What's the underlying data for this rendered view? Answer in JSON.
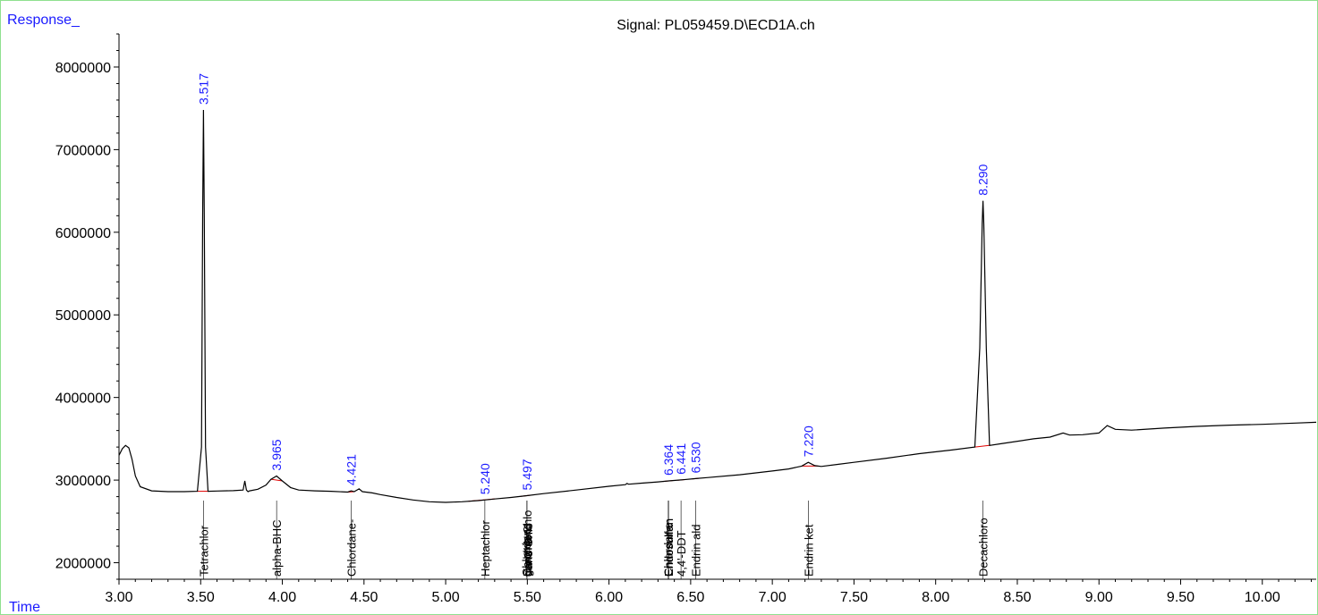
{
  "chart_data": {
    "type": "line",
    "title": "Signal: PL059459.D\\ECD1A.ch",
    "ylabel": "Response_",
    "xlabel": "Time",
    "xlim": [
      3.0,
      10.33
    ],
    "ylim": [
      1800000,
      8400000
    ],
    "x_ticks": [
      "3.00",
      "3.50",
      "4.00",
      "4.50",
      "5.00",
      "5.50",
      "6.00",
      "6.50",
      "7.00",
      "7.50",
      "8.00",
      "8.50",
      "9.00",
      "9.50",
      "10.00"
    ],
    "y_ticks": [
      "2000000",
      "3000000",
      "4000000",
      "5000000",
      "6000000",
      "7000000",
      "8000000"
    ],
    "colors": {
      "trace": "#000000",
      "peak_label": "#1a1aff",
      "baseline": "#e00000",
      "axis_title": "#1a1aff",
      "frame": "#8fe08f"
    },
    "series": [
      {
        "values": [
          [
            3.0,
            3300000
          ],
          [
            3.02,
            3380000
          ],
          [
            3.04,
            3420000
          ],
          [
            3.06,
            3390000
          ],
          [
            3.08,
            3250000
          ],
          [
            3.1,
            3050000
          ],
          [
            3.13,
            2920000
          ],
          [
            3.2,
            2870000
          ],
          [
            3.3,
            2860000
          ],
          [
            3.4,
            2860000
          ],
          [
            3.48,
            2865000
          ],
          [
            3.505,
            3400000
          ],
          [
            3.512,
            6200000
          ],
          [
            3.517,
            7480000
          ],
          [
            3.522,
            6200000
          ],
          [
            3.53,
            3400000
          ],
          [
            3.545,
            2865000
          ],
          [
            3.6,
            2868000
          ],
          [
            3.7,
            2872000
          ],
          [
            3.76,
            2880000
          ],
          [
            3.77,
            2990000
          ],
          [
            3.78,
            2880000
          ],
          [
            3.79,
            2860000
          ],
          [
            3.8,
            2870000
          ],
          [
            3.85,
            2890000
          ],
          [
            3.9,
            2940000
          ],
          [
            3.93,
            3010000
          ],
          [
            3.965,
            3050000
          ],
          [
            4.0,
            2990000
          ],
          [
            4.05,
            2910000
          ],
          [
            4.1,
            2880000
          ],
          [
            4.2,
            2870000
          ],
          [
            4.3,
            2865000
          ],
          [
            4.4,
            2855000
          ],
          [
            4.421,
            2870000
          ],
          [
            4.44,
            2860000
          ],
          [
            4.47,
            2895000
          ],
          [
            4.49,
            2860000
          ],
          [
            4.55,
            2845000
          ],
          [
            4.6,
            2825000
          ],
          [
            4.7,
            2790000
          ],
          [
            4.8,
            2760000
          ],
          [
            4.9,
            2738000
          ],
          [
            5.0,
            2730000
          ],
          [
            5.1,
            2738000
          ],
          [
            5.2,
            2752000
          ],
          [
            5.24,
            2760000
          ],
          [
            5.3,
            2772000
          ],
          [
            5.4,
            2790000
          ],
          [
            5.497,
            2812000
          ],
          [
            5.6,
            2836000
          ],
          [
            5.8,
            2880000
          ],
          [
            6.0,
            2925000
          ],
          [
            6.1,
            2945000
          ],
          [
            6.11,
            2960000
          ],
          [
            6.12,
            2950000
          ],
          [
            6.2,
            2963000
          ],
          [
            6.3,
            2978000
          ],
          [
            6.364,
            2990000
          ],
          [
            6.441,
            3002000
          ],
          [
            6.53,
            3018000
          ],
          [
            6.6,
            3030000
          ],
          [
            6.8,
            3065000
          ],
          [
            7.0,
            3110000
          ],
          [
            7.1,
            3135000
          ],
          [
            7.18,
            3170000
          ],
          [
            7.22,
            3215000
          ],
          [
            7.26,
            3175000
          ],
          [
            7.3,
            3165000
          ],
          [
            7.4,
            3190000
          ],
          [
            7.5,
            3215000
          ],
          [
            7.7,
            3265000
          ],
          [
            7.9,
            3320000
          ],
          [
            8.1,
            3365000
          ],
          [
            8.24,
            3400000
          ],
          [
            8.27,
            4600000
          ],
          [
            8.285,
            6100000
          ],
          [
            8.29,
            6380000
          ],
          [
            8.295,
            6100000
          ],
          [
            8.31,
            4600000
          ],
          [
            8.33,
            3420000
          ],
          [
            8.4,
            3440000
          ],
          [
            8.6,
            3500000
          ],
          [
            8.7,
            3520000
          ],
          [
            8.78,
            3570000
          ],
          [
            8.82,
            3545000
          ],
          [
            8.9,
            3550000
          ],
          [
            9.0,
            3570000
          ],
          [
            9.05,
            3660000
          ],
          [
            9.1,
            3615000
          ],
          [
            9.2,
            3605000
          ],
          [
            9.4,
            3630000
          ],
          [
            9.6,
            3650000
          ],
          [
            9.8,
            3665000
          ],
          [
            10.0,
            3675000
          ],
          [
            10.2,
            3690000
          ],
          [
            10.33,
            3700000
          ]
        ]
      }
    ],
    "peaks": [
      {
        "rt": "3.517",
        "x": 3.517,
        "y": 7480000,
        "compound": "Tetrachlor",
        "baseline": [
          3.48,
          3.55
        ]
      },
      {
        "rt": "3.965",
        "x": 3.965,
        "y": 3050000,
        "compound": "alpha-BHC",
        "baseline": [
          3.93,
          4.0
        ]
      },
      {
        "rt": "4.421",
        "x": 4.421,
        "y": 2870000,
        "compound": "Chlordane-",
        "baseline": [
          4.4,
          4.44
        ]
      },
      {
        "rt": "5.240",
        "x": 5.24,
        "y": 2760000,
        "compound": "Heptachlor",
        "baseline": [
          5.14,
          5.3
        ]
      },
      {
        "rt": "5.497",
        "x": 5.497,
        "y": 2812000,
        "compound": "gamma-Chlo",
        "baseline": [
          5.46,
          5.52
        ]
      },
      {
        "rt": "6.364",
        "x": 6.364,
        "y": 2990000,
        "compound": "Endosulfan",
        "baseline": [
          6.33,
          6.39
        ]
      },
      {
        "rt": "6.441",
        "x": 6.441,
        "y": 3002000,
        "compound": "4,4'-DDT",
        "baseline": [
          6.42,
          6.46
        ]
      },
      {
        "rt": "6.530",
        "x": 6.53,
        "y": 3018000,
        "compound": "Endrin ald",
        "baseline": [
          6.51,
          6.55
        ]
      },
      {
        "rt": "7.220",
        "x": 7.22,
        "y": 3215000,
        "compound": "Endrin ket",
        "baseline": [
          7.18,
          7.28
        ]
      },
      {
        "rt": "8.290",
        "x": 8.29,
        "y": 6380000,
        "compound": "Decachloro",
        "baseline": [
          8.24,
          8.34
        ]
      }
    ],
    "overlapping_labels": [
      {
        "x": 5.497,
        "compounds": [
          "Chlordane",
          "Dieldrin",
          "cis-Chlord",
          "trans-Chlo"
        ]
      },
      {
        "x": 6.364,
        "compounds": [
          "Chlordane",
          "Endosulfan"
        ]
      }
    ]
  }
}
